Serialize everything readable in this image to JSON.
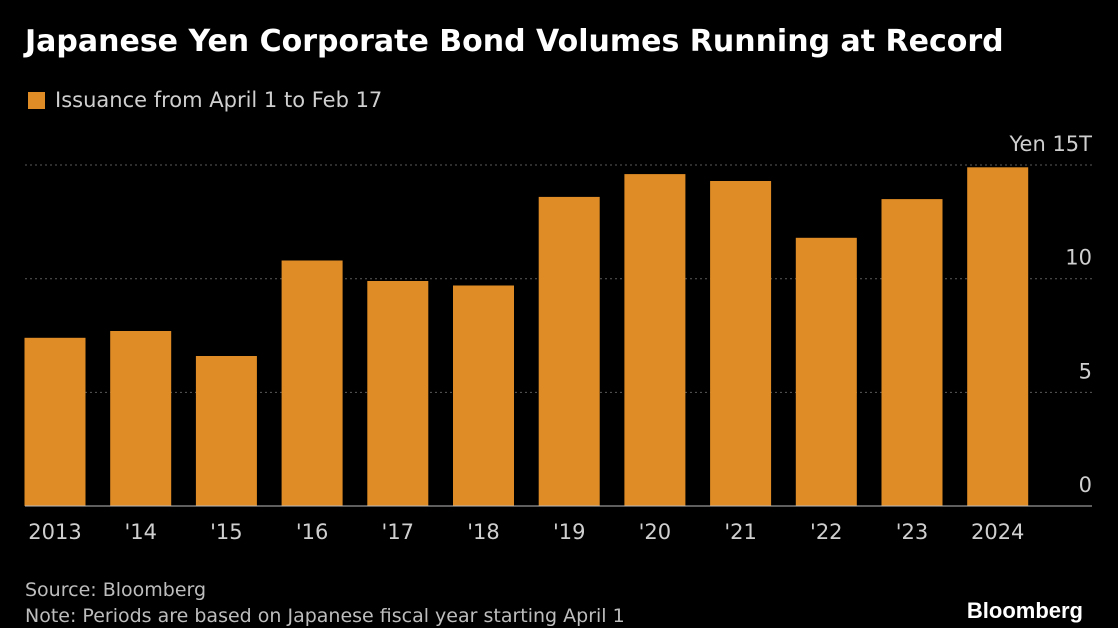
{
  "chart_data": {
    "type": "bar",
    "title": "Japanese Yen Corporate Bond Volumes Running at Record",
    "legend": [
      "Issuance from April 1 to Feb 17"
    ],
    "categories": [
      "2013",
      "'14",
      "'15",
      "'16",
      "'17",
      "'18",
      "'19",
      "'20",
      "'21",
      "'22",
      "'23",
      "2024"
    ],
    "series": [
      {
        "name": "Issuance from April 1 to Feb 17",
        "values": [
          7.4,
          7.7,
          6.6,
          10.8,
          9.9,
          9.7,
          13.6,
          14.6,
          14.3,
          11.8,
          13.5,
          14.9
        ]
      }
    ],
    "ylim": [
      0,
      15
    ],
    "yticks": [
      0,
      5,
      10,
      15
    ],
    "ytick_labels": [
      "0",
      "5",
      "10",
      "Yen 15T"
    ],
    "grid": true,
    "legend_position": "top-left",
    "colors": {
      "bar": "#e08c26",
      "background": "#000000",
      "grid": "#5a5a5a"
    }
  },
  "source": "Source: Bloomberg",
  "note": "Note: Periods are based on Japanese fiscal year starting April 1",
  "brand": "Bloomberg"
}
